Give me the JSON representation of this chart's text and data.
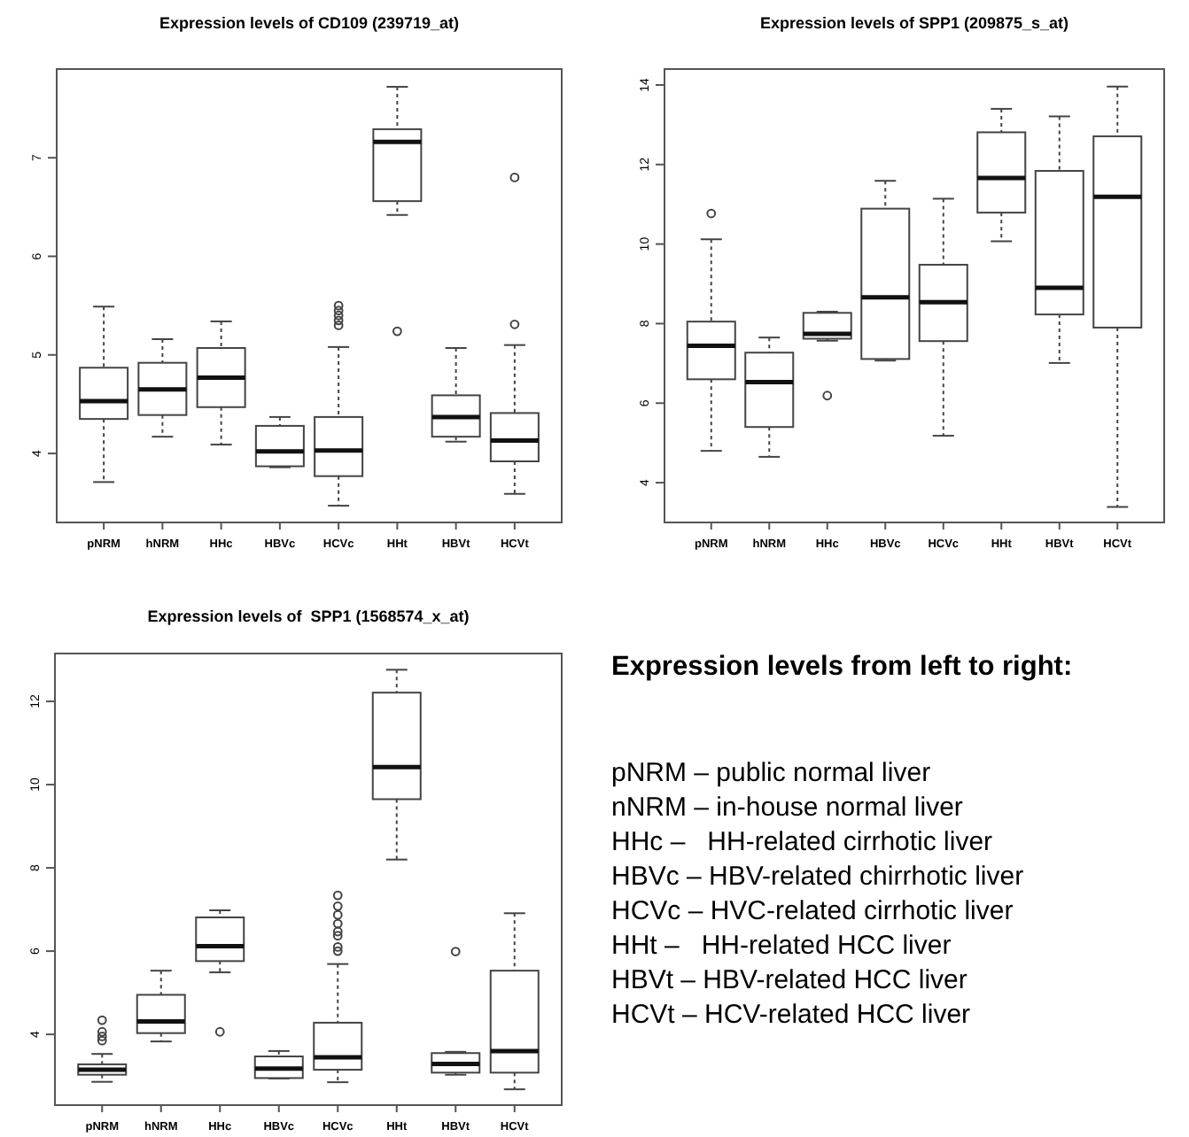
{
  "chart_data": [
    {
      "type": "box",
      "title": "Expression levels of CD109 (239719_at)",
      "categories": [
        "pNRM",
        "hNRM",
        "HHc",
        "HBVc",
        "HCVc",
        "HHt",
        "HBVt",
        "HCVt"
      ],
      "ylim": [
        3.3,
        7.9
      ],
      "yticks": [
        4,
        5,
        6,
        7
      ],
      "boxes": [
        {
          "low": 3.71,
          "q1": 4.35,
          "median": 4.53,
          "q3": 4.87,
          "high": 5.49
        },
        {
          "low": 4.17,
          "q1": 4.39,
          "median": 4.65,
          "q3": 4.92,
          "high": 5.16
        },
        {
          "low": 4.09,
          "q1": 4.47,
          "median": 4.77,
          "q3": 5.07,
          "high": 5.34
        },
        {
          "low": 3.86,
          "q1": 3.87,
          "median": 4.02,
          "q3": 4.28,
          "high": 4.37
        },
        {
          "low": 3.47,
          "q1": 3.77,
          "median": 4.03,
          "q3": 4.37,
          "high": 5.08,
          "outliers": [
            5.5,
            5.45,
            5.4,
            5.35,
            5.3
          ]
        },
        {
          "low": 6.42,
          "q1": 6.56,
          "median": 7.16,
          "q3": 7.29,
          "high": 7.72,
          "outliers": [
            5.24
          ]
        },
        {
          "low": 4.12,
          "q1": 4.17,
          "median": 4.37,
          "q3": 4.59,
          "high": 5.07
        },
        {
          "low": 3.59,
          "q1": 3.92,
          "median": 4.13,
          "q3": 4.41,
          "high": 5.1,
          "outliers": [
            5.31,
            6.8
          ]
        }
      ]
    },
    {
      "type": "box",
      "title": "Expression levels of SPP1 (209875_s_at)",
      "categories": [
        "pNRM",
        "hNRM",
        "HHc",
        "HBVc",
        "HCVc",
        "HHt",
        "HBVt",
        "HCVt"
      ],
      "ylim": [
        3.0,
        14.4
      ],
      "yticks": [
        4,
        6,
        8,
        10,
        12,
        14
      ],
      "boxes": [
        {
          "low": 4.8,
          "q1": 6.6,
          "median": 7.44,
          "q3": 8.05,
          "high": 10.12,
          "outliers": [
            10.77
          ]
        },
        {
          "low": 4.65,
          "q1": 5.4,
          "median": 6.53,
          "q3": 7.27,
          "high": 7.65
        },
        {
          "low": 7.57,
          "q1": 7.62,
          "median": 7.74,
          "q3": 8.27,
          "high": 8.3,
          "outliers": [
            6.19
          ]
        },
        {
          "low": 7.07,
          "q1": 7.11,
          "median": 8.66,
          "q3": 10.89,
          "high": 11.59
        },
        {
          "low": 5.18,
          "q1": 7.56,
          "median": 8.54,
          "q3": 9.48,
          "high": 11.14
        },
        {
          "low": 10.07,
          "q1": 10.79,
          "median": 11.66,
          "q3": 12.81,
          "high": 13.4
        },
        {
          "low": 7.01,
          "q1": 8.23,
          "median": 8.9,
          "q3": 11.84,
          "high": 13.21
        },
        {
          "low": 3.39,
          "q1": 7.9,
          "median": 11.19,
          "q3": 12.71,
          "high": 13.96
        }
      ]
    },
    {
      "type": "box",
      "title": "Expression levels of  SPP1 (1568574_x_at)",
      "categories": [
        "pNRM",
        "hNRM",
        "HHc",
        "HBVc",
        "HCVc",
        "HHt",
        "HBVt",
        "HCVt"
      ],
      "ylim": [
        2.3,
        13.15
      ],
      "yticks": [
        4,
        6,
        8,
        10,
        12
      ],
      "boxes": [
        {
          "low": 2.86,
          "q1": 3.03,
          "median": 3.15,
          "q3": 3.28,
          "high": 3.53,
          "outliers": [
            4.34,
            4.06,
            3.95,
            3.85
          ]
        },
        {
          "low": 3.83,
          "q1": 4.03,
          "median": 4.31,
          "q3": 4.95,
          "high": 5.53
        },
        {
          "low": 5.49,
          "q1": 5.76,
          "median": 6.12,
          "q3": 6.81,
          "high": 6.98,
          "outliers": [
            4.06
          ]
        },
        {
          "low": 2.94,
          "q1": 2.95,
          "median": 3.18,
          "q3": 3.47,
          "high": 3.6
        },
        {
          "low": 2.85,
          "q1": 3.15,
          "median": 3.45,
          "q3": 4.28,
          "high": 5.69,
          "outliers": [
            7.34,
            7.08,
            6.87,
            6.66,
            6.47,
            6.37,
            6.1,
            6.0
          ]
        },
        {
          "low": 8.2,
          "q1": 9.65,
          "median": 10.42,
          "q3": 12.21,
          "high": 12.76
        },
        {
          "low": 3.03,
          "q1": 3.08,
          "median": 3.29,
          "q3": 3.55,
          "high": 3.58,
          "outliers": [
            5.99
          ]
        },
        {
          "low": 2.68,
          "q1": 3.08,
          "median": 3.6,
          "q3": 5.53,
          "high": 6.91
        }
      ]
    },
    {
      "type": "other",
      "title": "Expression levels from left to right:",
      "annotations": [
        "pNRM – public normal liver",
        "nNRM – in-house normal liver",
        "HHc –   HH-related cirrhotic liver",
        "HBVc – HBV-related chirrhotic liver",
        "HCVc – HVC-related cirrhotic liver",
        "HHt –   HH-related HCC liver",
        "HBVt – HBV-related HCC liver",
        "HCVt – HCV-related HCC liver"
      ]
    }
  ]
}
